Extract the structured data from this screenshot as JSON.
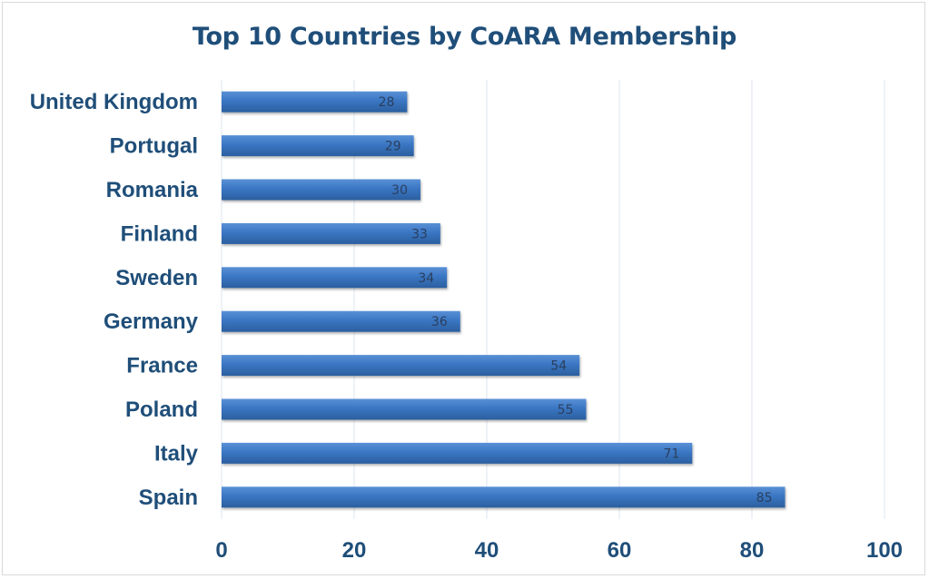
{
  "chart_data": {
    "type": "bar",
    "orientation": "horizontal",
    "title": "Top 10 Countries by CoARA Membership",
    "categories": [
      "United Kingdom",
      "Portugal",
      "Romania",
      "Finland",
      "Sweden",
      "Germany",
      "France",
      "Poland",
      "Italy",
      "Spain"
    ],
    "values": [
      28,
      29,
      30,
      33,
      34,
      36,
      54,
      55,
      71,
      85
    ],
    "xlabel": "",
    "ylabel": "",
    "xlim": [
      0,
      100
    ],
    "xticks": [
      "0",
      "20",
      "40",
      "60",
      "80",
      "100"
    ],
    "grid": true,
    "legend": "none",
    "bar_color": "#3a76c3",
    "title_color": "#1f4e79"
  }
}
